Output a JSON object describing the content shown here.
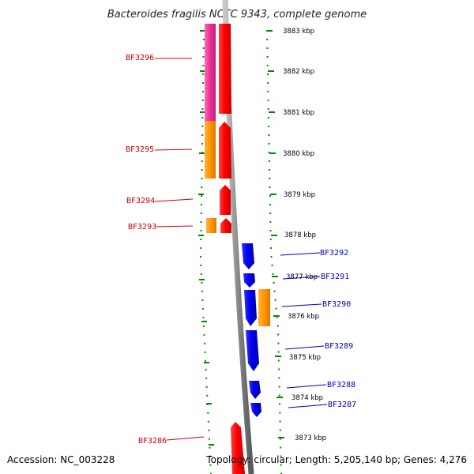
{
  "title": "Bacteroides fragilis NCTC 9343, complete genome",
  "footer": {
    "accession": "Accession: NC_003228",
    "topology": "Topology: circular; Length: 5,205,140 bp; Genes: 4,276"
  },
  "colors": {
    "forward_gene": "#ff0000",
    "reverse_gene": "#0000ee",
    "forward_label": "#cc0000",
    "reverse_label": "#0000bb",
    "magenta_feature": "#ee3399",
    "orange_feature": "#ff9900",
    "tick_green": "#008800",
    "backbone_gray": "#888888"
  },
  "kbp_labels": [
    "3883 kbp",
    "3882 kbp",
    "3881 kbp",
    "3880 kbp",
    "3879 kbp",
    "3878 kbp",
    "3877 kbp",
    "3876 kbp",
    "3875 kbp",
    "3874 kbp",
    "3873 kbp"
  ],
  "forward_genes": [
    "BF3296",
    "BF3295",
    "BF3294",
    "BF3293",
    "BF3286"
  ],
  "reverse_genes": [
    "BF3292",
    "BF3291",
    "BF3290",
    "BF3289",
    "BF3288",
    "BF3287"
  ]
}
